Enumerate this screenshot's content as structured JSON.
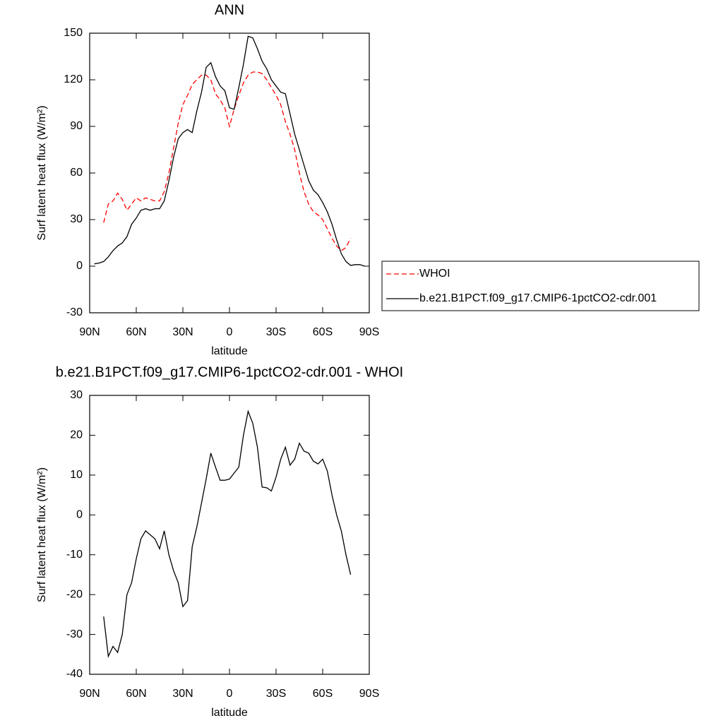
{
  "chart_data": [
    {
      "type": "line",
      "title": "ANN",
      "x_label": "latitude",
      "y_label": "Surf latent heat flux (W/m²)",
      "xlim": [
        90,
        -90
      ],
      "ylim": [
        -30,
        150
      ],
      "xticks": [
        {
          "value": 90,
          "label": "90N"
        },
        {
          "value": 60,
          "label": "60N"
        },
        {
          "value": 30,
          "label": "30N"
        },
        0,
        {
          "value": -30,
          "label": "30S"
        },
        {
          "value": -60,
          "label": "60S"
        },
        {
          "value": -90,
          "label": "90S"
        }
      ],
      "yticks": [
        -30,
        0,
        30,
        60,
        90,
        120,
        150
      ],
      "legend": "outside-right",
      "x": [
        87,
        84,
        81,
        78,
        75,
        72,
        69,
        66,
        63,
        60,
        57,
        54,
        51,
        48,
        45,
        42,
        39,
        36,
        33,
        30,
        27,
        24,
        21,
        18,
        15,
        12,
        9,
        6,
        3,
        0,
        -3,
        -6,
        -9,
        -12,
        -15,
        -18,
        -21,
        -24,
        -27,
        -30,
        -33,
        -36,
        -39,
        -42,
        -45,
        -48,
        -51,
        -54,
        -57,
        -60,
        -63,
        -66,
        -69,
        -72,
        -75,
        -78,
        -81,
        -84,
        -87
      ],
      "series": [
        {
          "name": "WHOI",
          "color": "#ff0000",
          "line_style": "dashed",
          "values": [
            null,
            null,
            28,
            40,
            42,
            47,
            43,
            36,
            40,
            44,
            42,
            44,
            43,
            42,
            42,
            48,
            60,
            76,
            92,
            104,
            110,
            117,
            120,
            123,
            123,
            120,
            111,
            107,
            102,
            90,
            101,
            110,
            118,
            123,
            125,
            125,
            124,
            120,
            115,
            110,
            104,
            93,
            85,
            75,
            60,
            48,
            40,
            35,
            33,
            30,
            24,
            18,
            13,
            10,
            12,
            18,
            null,
            null,
            null
          ]
        },
        {
          "name": "b.e21.B1PCT.f09_g17.CMIP6-1pctCO2-cdr.001",
          "color": "#000000",
          "line_style": "solid",
          "values": [
            1.5,
            2,
            3,
            6,
            10,
            13,
            15,
            19,
            27,
            31,
            36,
            37,
            36,
            37,
            37,
            42,
            55,
            70,
            82,
            86,
            88,
            86,
            100,
            112,
            128,
            131,
            122,
            116,
            113,
            102,
            101,
            115,
            130,
            148,
            147,
            140,
            132,
            127,
            120,
            116,
            112,
            111,
            98,
            85,
            75,
            65,
            55,
            49,
            46,
            41,
            35,
            27,
            17,
            8,
            3,
            0.5,
            1,
            1,
            0
          ]
        }
      ]
    },
    {
      "type": "line",
      "title": "b.e21.B1PCT.f09_g17.CMIP6-1pctCO2-cdr.001 - WHOI",
      "x_label": "latitude",
      "y_label": "Surf latent heat flux (W/m²)",
      "xlim": [
        90,
        -90
      ],
      "ylim": [
        -40,
        30
      ],
      "xticks": [
        {
          "value": 90,
          "label": "90N"
        },
        {
          "value": 60,
          "label": "60N"
        },
        {
          "value": 30,
          "label": "30N"
        },
        0,
        {
          "value": -30,
          "label": "30S"
        },
        {
          "value": -60,
          "label": "60S"
        },
        {
          "value": -90,
          "label": "90S"
        }
      ],
      "yticks": [
        -40,
        -30,
        -20,
        -10,
        0,
        10,
        20,
        30
      ],
      "x": [
        87,
        84,
        81,
        78,
        75,
        72,
        69,
        66,
        63,
        60,
        57,
        54,
        51,
        48,
        45,
        42,
        39,
        36,
        33,
        30,
        27,
        24,
        21,
        18,
        15,
        12,
        9,
        6,
        3,
        0,
        -3,
        -6,
        -9,
        -12,
        -15,
        -18,
        -21,
        -24,
        -27,
        -30,
        -33,
        -36,
        -39,
        -42,
        -45,
        -48,
        -51,
        -54,
        -57,
        -60,
        -63,
        -66,
        -69,
        -72,
        -75,
        -78,
        -81,
        -84,
        -87
      ],
      "series": [
        {
          "color": "#000000",
          "line_style": "solid",
          "values": [
            null,
            null,
            -25.5,
            -35.5,
            -33,
            -34.5,
            -30,
            -20,
            -17,
            -11,
            -6,
            -4,
            -5,
            -6,
            -8.5,
            -4,
            -10,
            -14,
            -17,
            -23,
            -21.5,
            -8,
            -3,
            3,
            9,
            15.5,
            12,
            8.7,
            8.7,
            9,
            10.5,
            12,
            20,
            26,
            23,
            17,
            7,
            6.8,
            6,
            9.5,
            14,
            17,
            12.5,
            14,
            18,
            16,
            15.5,
            13.5,
            12.8,
            14,
            11,
            5,
            0,
            -4,
            -10,
            -15,
            null,
            null,
            null
          ]
        }
      ]
    }
  ]
}
